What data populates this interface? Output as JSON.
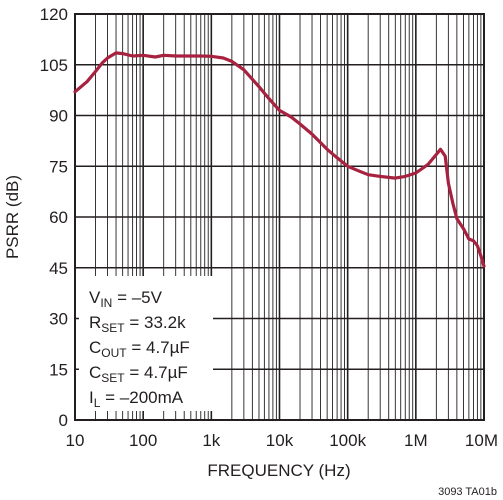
{
  "chart_data": {
    "type": "line",
    "xlabel": "FREQUENCY (Hz)",
    "ylabel": "PSRR (dB)",
    "x_scale": "log",
    "xlim": [
      10,
      10000000
    ],
    "ylim": [
      0,
      120
    ],
    "grid": true,
    "x_ticks": [
      {
        "value": 10,
        "label": "10"
      },
      {
        "value": 100,
        "label": "100"
      },
      {
        "value": 1000,
        "label": "1k"
      },
      {
        "value": 10000,
        "label": "10k"
      },
      {
        "value": 100000,
        "label": "100k"
      },
      {
        "value": 1000000,
        "label": "1M"
      },
      {
        "value": 10000000,
        "label": "10M"
      }
    ],
    "y_ticks": [
      0,
      15,
      30,
      45,
      60,
      75,
      90,
      105,
      120
    ],
    "series": [
      {
        "color": "#a6223e",
        "x": [
          10,
          15,
          20,
          25,
          30,
          40,
          50,
          70,
          100,
          150,
          200,
          300,
          500,
          700,
          1000,
          1500,
          2000,
          3000,
          5000,
          7000,
          10000,
          15000,
          20000,
          30000,
          50000,
          70000,
          100000,
          150000,
          200000,
          300000,
          500000,
          700000,
          1000000,
          1500000,
          2000000,
          2300000,
          2700000,
          3000000,
          3500000,
          4000000,
          5000000,
          6000000,
          7000000,
          8000000,
          9000000,
          10000000
        ],
        "y": [
          97,
          100,
          103,
          105.5,
          107,
          108.5,
          108.3,
          107.6,
          107.8,
          107.3,
          107.8,
          107.6,
          107.6,
          107.6,
          107.5,
          107,
          106,
          103.5,
          98.5,
          95,
          91.5,
          89.5,
          87.5,
          84.5,
          80,
          77.5,
          75,
          73.5,
          72.5,
          72,
          71.5,
          72,
          73,
          75.5,
          78.5,
          80,
          78,
          70,
          64,
          59.5,
          56.5,
          53.5,
          53,
          51.5,
          48.5,
          45.5
        ]
      }
    ],
    "annotations": [
      {
        "main": "V",
        "sub": "IN",
        "rest": " = –5V"
      },
      {
        "main": "R",
        "sub": "SET",
        "rest": " = 33.2k"
      },
      {
        "main": "C",
        "sub": "OUT",
        "rest": " = 4.7µF"
      },
      {
        "main": "C",
        "sub": "SET",
        "rest": " = 4.7µF"
      },
      {
        "main": "I",
        "sub": "L",
        "rest": " = –200mA"
      }
    ],
    "figure_id": "3093 TA01b"
  }
}
